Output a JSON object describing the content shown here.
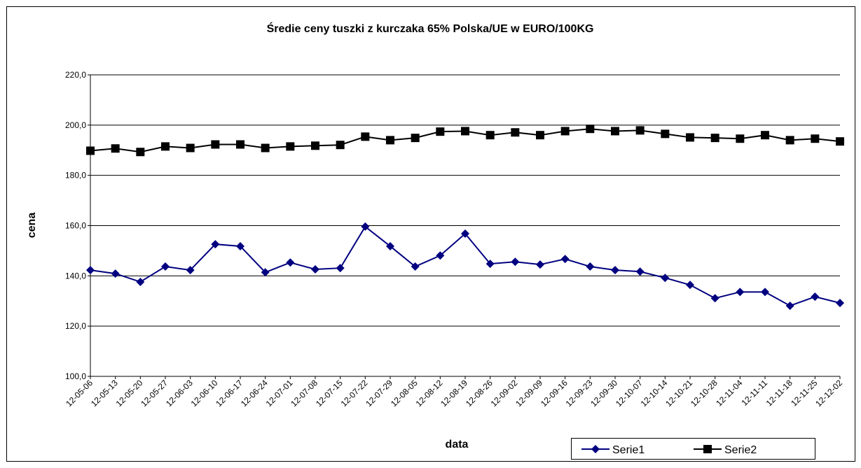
{
  "chart_data": {
    "type": "line",
    "title": "Średie ceny tuszki z kurczaka 65% Polska/UE w EURO/100KG",
    "x_label": "data",
    "y_label": "cena",
    "categories": [
      "12-05-06",
      "12-05-13",
      "12-05-20",
      "12-05-27",
      "12-06-03",
      "12-06-10",
      "12-06-17",
      "12-06-24",
      "12-07-01",
      "12-07-08",
      "12-07-15",
      "12-07-22",
      "12-07-29",
      "12-08-05",
      "12-08-12",
      "12-08-19",
      "12-08-26",
      "12-09-02",
      "12-09-09",
      "12-09-16",
      "12-09-23",
      "12-09-30",
      "12-10-07",
      "12-10-14",
      "12-10-21",
      "12-10-28",
      "12-11-04",
      "12-11-11",
      "12-11-18",
      "12-11-25",
      "12-12-02"
    ],
    "series": [
      {
        "name": "Serie1",
        "color": "#000080",
        "marker": "diamond",
        "values": [
          142.3,
          140.9,
          137.6,
          143.7,
          142.3,
          152.6,
          151.8,
          141.4,
          145.3,
          142.6,
          143.1,
          159.6,
          151.8,
          143.7,
          148.1,
          156.8,
          144.8,
          145.6,
          144.5,
          146.7,
          143.7,
          142.3,
          141.7,
          139.2,
          136.4,
          131.1,
          133.6,
          133.6,
          128.1,
          131.7,
          129.2
        ]
      },
      {
        "name": "Serie2",
        "color": "#000000",
        "marker": "square",
        "values": [
          189.8,
          190.7,
          189.3,
          191.5,
          190.9,
          192.3,
          192.3,
          190.9,
          191.5,
          191.8,
          192.1,
          195.4,
          194.0,
          194.9,
          197.4,
          197.6,
          196.0,
          197.1,
          196.0,
          197.6,
          198.5,
          197.6,
          197.9,
          196.5,
          195.1,
          194.9,
          194.6,
          196.0,
          194.0,
          194.6,
          193.5
        ]
      }
    ],
    "ylim": [
      100,
      220
    ],
    "yticks": [
      {
        "value": 100,
        "label": "100,0"
      },
      {
        "value": 120,
        "label": "120,0"
      },
      {
        "value": 140,
        "label": "140,0"
      },
      {
        "value": 160,
        "label": "160,0"
      },
      {
        "value": 180,
        "label": "180,0"
      },
      {
        "value": 200,
        "label": "200,0"
      },
      {
        "value": 220,
        "label": "220,0"
      }
    ],
    "grid": true
  }
}
